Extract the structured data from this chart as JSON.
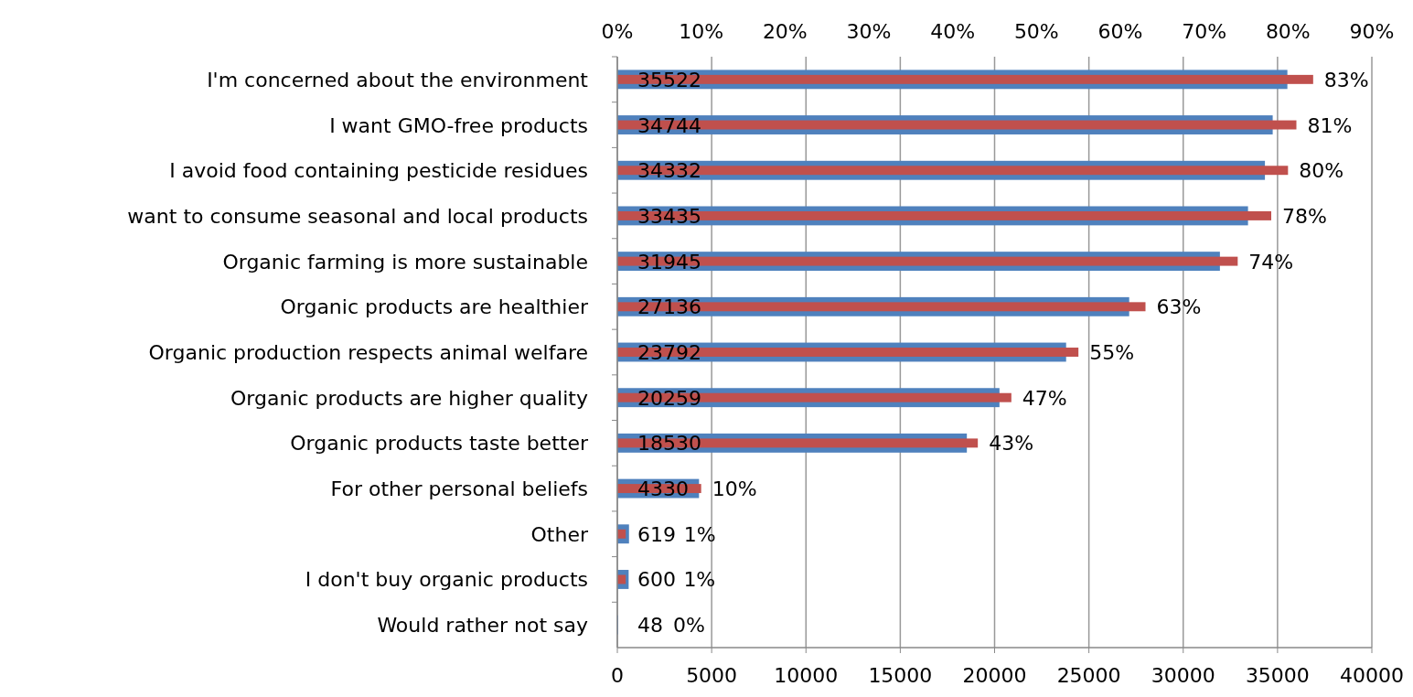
{
  "chart_data": {
    "type": "bar",
    "orientation": "horizontal",
    "categories": [
      "I'm concerned about the environment",
      "I want GMO-free products",
      "I avoid food containing pesticide residues",
      "want to consume seasonal and local products",
      "Organic farming is more sustainable",
      "Organic products are healthier",
      "Organic production respects animal welfare",
      "Organic products are higher quality",
      "Organic products taste better",
      "For other personal beliefs",
      "Other",
      "I don't buy organic products",
      "Would rather not say"
    ],
    "series": [
      {
        "color": "#4f81bd",
        "values": [
          35522,
          34744,
          34332,
          33435,
          31945,
          27136,
          23792,
          20259,
          18530,
          4330,
          619,
          600,
          48
        ],
        "value_labels": [
          "35522",
          "34744",
          "34332",
          "33435",
          "31945",
          "27136",
          "23792",
          "20259",
          "18530",
          "4330",
          "619",
          "600",
          "48"
        ]
      },
      {
        "color": "#c0504d",
        "axis": "x2",
        "values": [
          83,
          81,
          80,
          78,
          74,
          63,
          55,
          47,
          43,
          10,
          1,
          1,
          0
        ],
        "value_labels": [
          "83%",
          "81%",
          "80%",
          "78%",
          "74%",
          "63%",
          "55%",
          "47%",
          "43%",
          "10%",
          "1%",
          "1%",
          "0%"
        ]
      }
    ],
    "xlim": [
      0,
      40000
    ],
    "xticks": [
      0,
      5000,
      10000,
      15000,
      20000,
      25000,
      30000,
      35000,
      40000
    ],
    "x2lim": [
      0,
      90
    ],
    "x2ticks": [
      {
        "value": 0,
        "label": "0%"
      },
      {
        "value": 10,
        "label": "10%"
      },
      {
        "value": 20,
        "label": "20%"
      },
      {
        "value": 30,
        "label": "30%"
      },
      {
        "value": 40,
        "label": "40%"
      },
      {
        "value": 50,
        "label": "50%"
      },
      {
        "value": 60,
        "label": "60%"
      },
      {
        "value": 70,
        "label": "70%"
      },
      {
        "value": 80,
        "label": "80%"
      },
      {
        "value": 90,
        "label": "90%"
      }
    ],
    "grid": "x"
  }
}
